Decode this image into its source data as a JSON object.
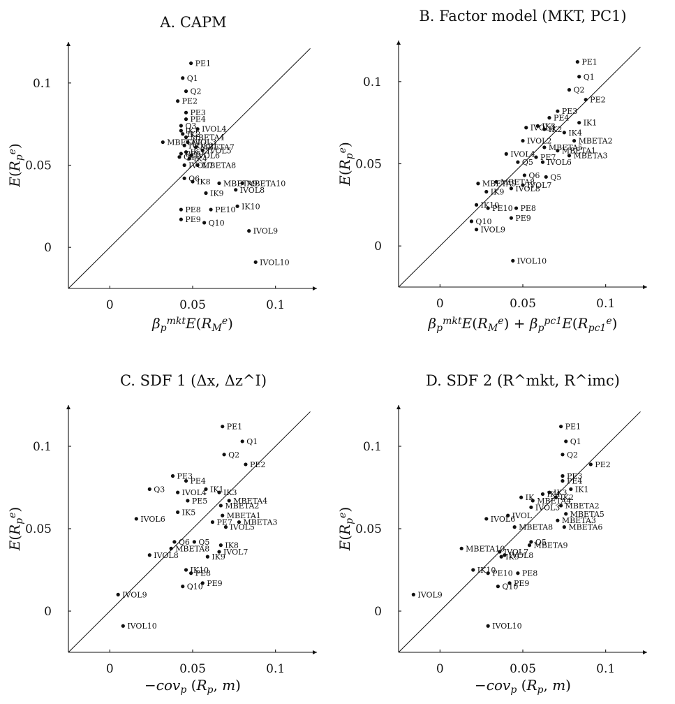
{
  "chart_data": [
    {
      "type": "scatter",
      "title": "A. CAPM",
      "xlabel": "β_p^mkt E(R_M^e)",
      "ylabel": "E(R_p^e)",
      "xlim": [
        -0.025,
        0.125
      ],
      "ylim": [
        -0.025,
        0.125
      ],
      "xticks": [
        "0",
        "0.05",
        "0.1"
      ],
      "yticks": [
        "0",
        "0.05",
        "0.1"
      ],
      "points": [
        {
          "label": "PE1",
          "x": 0.049,
          "y": 0.112
        },
        {
          "label": "Q1",
          "x": 0.044,
          "y": 0.103
        },
        {
          "label": "Q2",
          "x": 0.046,
          "y": 0.095
        },
        {
          "label": "PE2",
          "x": 0.041,
          "y": 0.089
        },
        {
          "label": "PE3",
          "x": 0.046,
          "y": 0.082
        },
        {
          "label": "PE4",
          "x": 0.046,
          "y": 0.078
        },
        {
          "label": "Q3",
          "x": 0.043,
          "y": 0.074
        },
        {
          "label": "IVOL4",
          "x": 0.053,
          "y": 0.072
        },
        {
          "label": "IK1",
          "x": 0.043,
          "y": 0.071
        },
        {
          "label": "IK2",
          "x": 0.044,
          "y": 0.069
        },
        {
          "label": "MBETA4",
          "x": 0.046,
          "y": 0.067
        },
        {
          "label": "MBETA1",
          "x": 0.032,
          "y": 0.064
        },
        {
          "label": "IVOL3",
          "x": 0.047,
          "y": 0.064
        },
        {
          "label": "IVOL2",
          "x": 0.045,
          "y": 0.062
        },
        {
          "label": "MBETA7",
          "x": 0.052,
          "y": 0.061
        },
        {
          "label": "IVOL5",
          "x": 0.056,
          "y": 0.059
        },
        {
          "label": "IK3",
          "x": 0.046,
          "y": 0.058
        },
        {
          "label": "IVOL6",
          "x": 0.049,
          "y": 0.056
        },
        {
          "label": "PE5",
          "x": 0.043,
          "y": 0.057
        },
        {
          "label": "Q4",
          "x": 0.042,
          "y": 0.055
        },
        {
          "label": "IK4",
          "x": 0.048,
          "y": 0.054
        },
        {
          "label": "MBETA8",
          "x": 0.053,
          "y": 0.05
        },
        {
          "label": "IVOL7",
          "x": 0.045,
          "y": 0.05
        },
        {
          "label": "Q6",
          "x": 0.045,
          "y": 0.042
        },
        {
          "label": "IK8",
          "x": 0.05,
          "y": 0.04
        },
        {
          "label": "MBETA9",
          "x": 0.066,
          "y": 0.039
        },
        {
          "label": "MBETA10",
          "x": 0.08,
          "y": 0.039
        },
        {
          "label": "IVOL8",
          "x": 0.076,
          "y": 0.035
        },
        {
          "label": "IK9",
          "x": 0.058,
          "y": 0.033
        },
        {
          "label": "IK10",
          "x": 0.077,
          "y": 0.025
        },
        {
          "label": "PE8",
          "x": 0.043,
          "y": 0.023
        },
        {
          "label": "PE10",
          "x": 0.061,
          "y": 0.023
        },
        {
          "label": "PE9",
          "x": 0.043,
          "y": 0.017
        },
        {
          "label": "Q10",
          "x": 0.057,
          "y": 0.015
        },
        {
          "label": "IVOL9",
          "x": 0.084,
          "y": 0.01
        },
        {
          "label": "IVOL10",
          "x": 0.088,
          "y": -0.009
        }
      ]
    },
    {
      "type": "scatter",
      "title": "B. Factor model (MKT, PC1)",
      "xlabel": "β_p^mkt E(R_M^e) + β_p^pc1 E(R_pc1^e)",
      "ylabel": "E(R_p^e)",
      "xlim": [
        -0.025,
        0.125
      ],
      "ylim": [
        -0.025,
        0.125
      ],
      "xticks": [
        "0",
        "0.05",
        "0.1"
      ],
      "yticks": [
        "0",
        "0.05",
        "0.1"
      ],
      "points": [
        {
          "label": "PE1",
          "x": 0.083,
          "y": 0.112
        },
        {
          "label": "Q1",
          "x": 0.084,
          "y": 0.103
        },
        {
          "label": "Q2",
          "x": 0.078,
          "y": 0.095
        },
        {
          "label": "PE2",
          "x": 0.088,
          "y": 0.089
        },
        {
          "label": "PE3",
          "x": 0.071,
          "y": 0.082
        },
        {
          "label": "PE4",
          "x": 0.066,
          "y": 0.078
        },
        {
          "label": "IK1",
          "x": 0.084,
          "y": 0.075
        },
        {
          "label": "IVOL3",
          "x": 0.052,
          "y": 0.072
        },
        {
          "label": "IK3",
          "x": 0.059,
          "y": 0.073
        },
        {
          "label": "IK4",
          "x": 0.075,
          "y": 0.069
        },
        {
          "label": "IK2",
          "x": 0.063,
          "y": 0.071
        },
        {
          "label": "MBETA2",
          "x": 0.081,
          "y": 0.064
        },
        {
          "label": "IVOL2",
          "x": 0.05,
          "y": 0.064
        },
        {
          "label": "MBETA1",
          "x": 0.071,
          "y": 0.058
        },
        {
          "label": "MBETA3",
          "x": 0.078,
          "y": 0.055
        },
        {
          "label": "MBETA5",
          "x": 0.063,
          "y": 0.06
        },
        {
          "label": "IVOL4",
          "x": 0.04,
          "y": 0.056
        },
        {
          "label": "PE7",
          "x": 0.058,
          "y": 0.054
        },
        {
          "label": "Q5",
          "x": 0.047,
          "y": 0.051
        },
        {
          "label": "IVOL6",
          "x": 0.062,
          "y": 0.051
        },
        {
          "label": "Q6",
          "x": 0.051,
          "y": 0.043
        },
        {
          "label": "Q5",
          "x": 0.064,
          "y": 0.042
        },
        {
          "label": "MBETA8",
          "x": 0.034,
          "y": 0.039
        },
        {
          "label": "MBETA9",
          "x": 0.023,
          "y": 0.038
        },
        {
          "label": "IVOL7",
          "x": 0.05,
          "y": 0.037
        },
        {
          "label": "IVOL8",
          "x": 0.043,
          "y": 0.035
        },
        {
          "label": "IK9",
          "x": 0.028,
          "y": 0.033
        },
        {
          "label": "IK10",
          "x": 0.022,
          "y": 0.025
        },
        {
          "label": "PE10",
          "x": 0.029,
          "y": 0.023
        },
        {
          "label": "PE8",
          "x": 0.046,
          "y": 0.023
        },
        {
          "label": "PE9",
          "x": 0.043,
          "y": 0.017
        },
        {
          "label": "Q10",
          "x": 0.019,
          "y": 0.015
        },
        {
          "label": "IVOL9",
          "x": 0.022,
          "y": 0.01
        },
        {
          "label": "IVOL10",
          "x": 0.044,
          "y": -0.009
        }
      ]
    },
    {
      "type": "scatter",
      "title": "C. SDF 1 (Δx, Δz^I)",
      "xlabel": "−cov_p (R_p, m)",
      "ylabel": "E(R_p^e)",
      "xlim": [
        -0.025,
        0.125
      ],
      "ylim": [
        -0.025,
        0.125
      ],
      "xticks": [
        "0",
        "0.05",
        "0.1"
      ],
      "yticks": [
        "0",
        "0.05",
        "0.1"
      ],
      "points": [
        {
          "label": "PE1",
          "x": 0.068,
          "y": 0.112
        },
        {
          "label": "Q1",
          "x": 0.08,
          "y": 0.103
        },
        {
          "label": "Q2",
          "x": 0.069,
          "y": 0.095
        },
        {
          "label": "PE2",
          "x": 0.082,
          "y": 0.089
        },
        {
          "label": "PE3",
          "x": 0.038,
          "y": 0.082
        },
        {
          "label": "PE4",
          "x": 0.046,
          "y": 0.079
        },
        {
          "label": "Q3",
          "x": 0.024,
          "y": 0.074
        },
        {
          "label": "IK1",
          "x": 0.058,
          "y": 0.074
        },
        {
          "label": "IVOL4",
          "x": 0.041,
          "y": 0.072
        },
        {
          "label": "IK3",
          "x": 0.066,
          "y": 0.072
        },
        {
          "label": "MBETA4",
          "x": 0.072,
          "y": 0.067
        },
        {
          "label": "PE5",
          "x": 0.047,
          "y": 0.067
        },
        {
          "label": "MBETA2",
          "x": 0.067,
          "y": 0.064
        },
        {
          "label": "IK5",
          "x": 0.041,
          "y": 0.06
        },
        {
          "label": "MBETA1",
          "x": 0.068,
          "y": 0.058
        },
        {
          "label": "MBETA3",
          "x": 0.078,
          "y": 0.054
        },
        {
          "label": "IVOL6",
          "x": 0.016,
          "y": 0.056
        },
        {
          "label": "PE7",
          "x": 0.062,
          "y": 0.054
        },
        {
          "label": "IVOL5",
          "x": 0.07,
          "y": 0.051
        },
        {
          "label": "Q6",
          "x": 0.039,
          "y": 0.042
        },
        {
          "label": "Q5",
          "x": 0.051,
          "y": 0.042
        },
        {
          "label": "IK8",
          "x": 0.067,
          "y": 0.04
        },
        {
          "label": "MBETA8",
          "x": 0.037,
          "y": 0.038
        },
        {
          "label": "IVOL7",
          "x": 0.066,
          "y": 0.036
        },
        {
          "label": "IVOL8",
          "x": 0.024,
          "y": 0.034
        },
        {
          "label": "IK9",
          "x": 0.059,
          "y": 0.033
        },
        {
          "label": "IK10",
          "x": 0.046,
          "y": 0.025
        },
        {
          "label": "PE8",
          "x": 0.049,
          "y": 0.023
        },
        {
          "label": "PE9",
          "x": 0.056,
          "y": 0.017
        },
        {
          "label": "Q10",
          "x": 0.044,
          "y": 0.015
        },
        {
          "label": "IVOL9",
          "x": 0.005,
          "y": 0.01
        },
        {
          "label": "IVOL10",
          "x": 0.008,
          "y": -0.009
        }
      ]
    },
    {
      "type": "scatter",
      "title": "D. SDF 2 (R^mkt, R^imc)",
      "xlabel": "−cov_p (R_p, m)",
      "ylabel": "E(R_p^e)",
      "xlim": [
        -0.025,
        0.125
      ],
      "ylim": [
        -0.025,
        0.125
      ],
      "xticks": [
        "0",
        "0.05",
        "0.1"
      ],
      "yticks": [
        "0",
        "0.05",
        "0.1"
      ],
      "points": [
        {
          "label": "PE1",
          "x": 0.073,
          "y": 0.112
        },
        {
          "label": "Q1",
          "x": 0.076,
          "y": 0.103
        },
        {
          "label": "Q2",
          "x": 0.074,
          "y": 0.095
        },
        {
          "label": "PE2",
          "x": 0.091,
          "y": 0.089
        },
        {
          "label": "PE3",
          "x": 0.074,
          "y": 0.082
        },
        {
          "label": "PE4",
          "x": 0.074,
          "y": 0.079
        },
        {
          "label": "IK1",
          "x": 0.079,
          "y": 0.074
        },
        {
          "label": "IK3",
          "x": 0.066,
          "y": 0.072
        },
        {
          "label": "IK4",
          "x": 0.062,
          "y": 0.071
        },
        {
          "label": "IK",
          "x": 0.049,
          "y": 0.069
        },
        {
          "label": "IK2",
          "x": 0.07,
          "y": 0.069
        },
        {
          "label": "MBETA4",
          "x": 0.056,
          "y": 0.067
        },
        {
          "label": "MBETA2",
          "x": 0.073,
          "y": 0.064
        },
        {
          "label": "IVOL3",
          "x": 0.055,
          "y": 0.063
        },
        {
          "label": "MBETA5",
          "x": 0.076,
          "y": 0.059
        },
        {
          "label": "IVOL",
          "x": 0.041,
          "y": 0.058
        },
        {
          "label": "IVOL6",
          "x": 0.028,
          "y": 0.056
        },
        {
          "label": "MBETA3",
          "x": 0.071,
          "y": 0.055
        },
        {
          "label": "MBETA6",
          "x": 0.075,
          "y": 0.051
        },
        {
          "label": "MBETA8",
          "x": 0.045,
          "y": 0.051
        },
        {
          "label": "Q5",
          "x": 0.055,
          "y": 0.042
        },
        {
          "label": "MBETA9",
          "x": 0.054,
          "y": 0.04
        },
        {
          "label": "MBETA10",
          "x": 0.013,
          "y": 0.038
        },
        {
          "label": "IVOL7",
          "x": 0.036,
          "y": 0.036
        },
        {
          "label": "IVOL8",
          "x": 0.039,
          "y": 0.034
        },
        {
          "label": "IK9",
          "x": 0.037,
          "y": 0.033
        },
        {
          "label": "IK10",
          "x": 0.02,
          "y": 0.025
        },
        {
          "label": "PE10",
          "x": 0.029,
          "y": 0.023
        },
        {
          "label": "PE8",
          "x": 0.047,
          "y": 0.023
        },
        {
          "label": "PE9",
          "x": 0.042,
          "y": 0.017
        },
        {
          "label": "Q10",
          "x": 0.035,
          "y": 0.015
        },
        {
          "label": "IVOL9",
          "x": -0.016,
          "y": 0.01
        },
        {
          "label": "IVOL10",
          "x": 0.029,
          "y": -0.009
        }
      ]
    }
  ]
}
